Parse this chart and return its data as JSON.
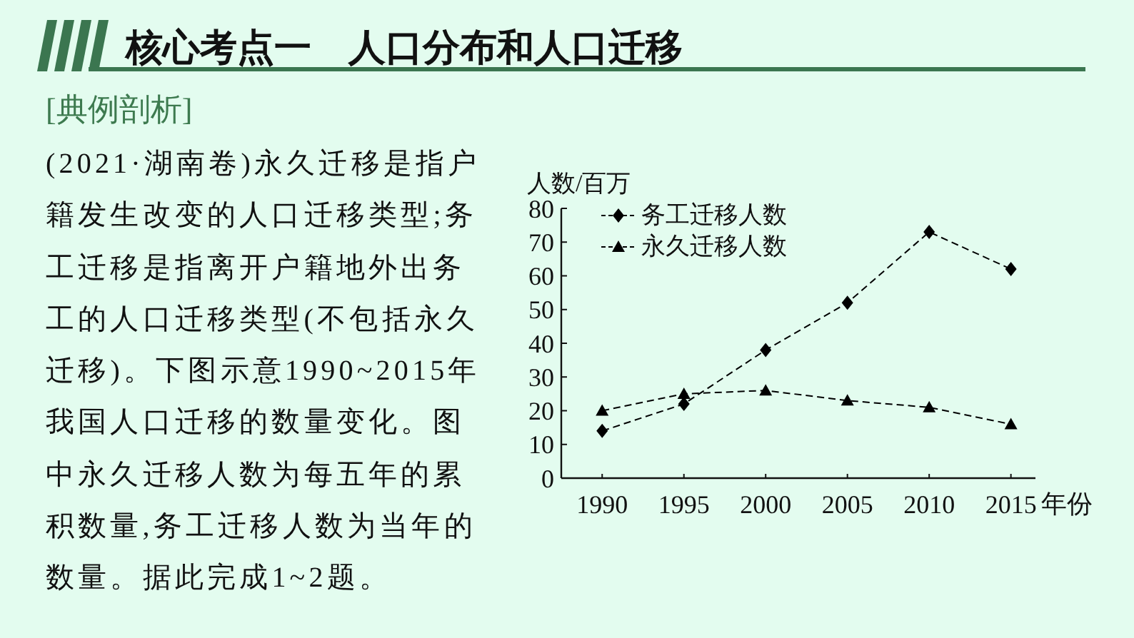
{
  "chart_data": {
    "type": "line",
    "title": "核心考点一　人口分布和人口迁移",
    "subtitle": "[典例剖析]",
    "annotations": [
      "(2021·湖南卷)永久迁移是指户籍发生改变的人口迁移类型;务工迁移是指离开户籍地外出务工的人口迁移类型(不包括永久迁移)。下图示意1990~2015年我国人口迁移的数量变化。图中永久迁移人数为每五年的累积数量,务工迁移人数为当年的数量。据此完成1~2题。"
    ],
    "xlabel": "年份",
    "ylabel": "人数/百万",
    "x": [
      1990,
      1995,
      2000,
      2005,
      2010,
      2015
    ],
    "series": [
      {
        "name": "务工迁移人数",
        "color": "#000000",
        "marker": "diamond",
        "values": [
          14,
          22,
          38,
          52,
          73,
          62
        ]
      },
      {
        "name": "永久迁移人数",
        "color": "#000000",
        "marker": "triangle",
        "values": [
          20,
          25,
          26,
          23,
          21,
          16
        ]
      }
    ],
    "xlim": [
      1987.5,
      2016.5
    ],
    "xticks": [
      1990,
      1995,
      2000,
      2005,
      2010,
      2015
    ],
    "ylim": [
      0,
      80
    ],
    "yticks": [
      0,
      10,
      20,
      30,
      40,
      50,
      60,
      70,
      80
    ],
    "line_style": "dashed",
    "legend": "top left"
  }
}
